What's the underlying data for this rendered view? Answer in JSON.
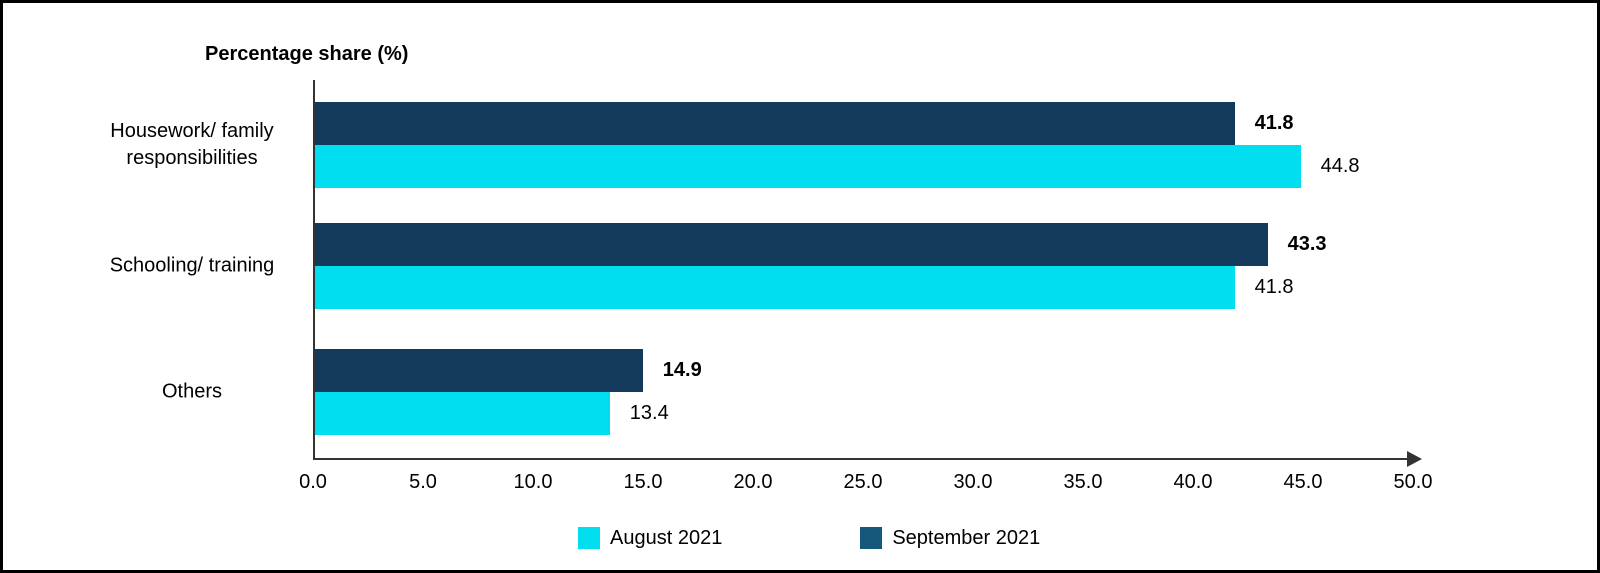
{
  "chart_data": {
    "type": "bar",
    "orientation": "horizontal",
    "title": "Percentage share (%)",
    "categories": [
      "Housework/ family\nresponsibilities",
      "Schooling/ training",
      "Others"
    ],
    "series": [
      {
        "name": "September 2021",
        "values": [
          41.8,
          43.3,
          14.9
        ],
        "value_labels": [
          "41.8",
          "43.3",
          "14.9"
        ],
        "color": "#13395B",
        "label_style": "bold"
      },
      {
        "name": "August 2021",
        "values": [
          44.8,
          41.8,
          13.4
        ],
        "value_labels": [
          "44.8",
          "41.8",
          "13.4"
        ],
        "color": "#00DEEF",
        "label_style": "normal"
      }
    ],
    "xlim": [
      0,
      50
    ],
    "x_ticks": [
      {
        "v": 0,
        "label": "0.0"
      },
      {
        "v": 5,
        "label": "5.0"
      },
      {
        "v": 10,
        "label": "10.0"
      },
      {
        "v": 15,
        "label": "15.0"
      },
      {
        "v": 20,
        "label": "20.0"
      },
      {
        "v": 25,
        "label": "25.0"
      },
      {
        "v": 30,
        "label": "30.0"
      },
      {
        "v": 35,
        "label": "35.0"
      },
      {
        "v": 40,
        "label": "40.0"
      },
      {
        "v": 45,
        "label": "45.0"
      },
      {
        "v": 50,
        "label": "50.0"
      }
    ],
    "grid": false,
    "legend": {
      "position": "bottom",
      "items": [
        {
          "label": "August 2021",
          "color": "#00DEEF"
        },
        {
          "label": "September 2021",
          "color": "#15587C"
        }
      ]
    }
  },
  "colors": {
    "background": "#FFFFFF",
    "frame_border": "#000000",
    "axis": "#333333",
    "text": "#000000",
    "august_bar": "#00DEEF",
    "september_bar": "#13395B",
    "september_legend_swatch": "#15587C"
  }
}
